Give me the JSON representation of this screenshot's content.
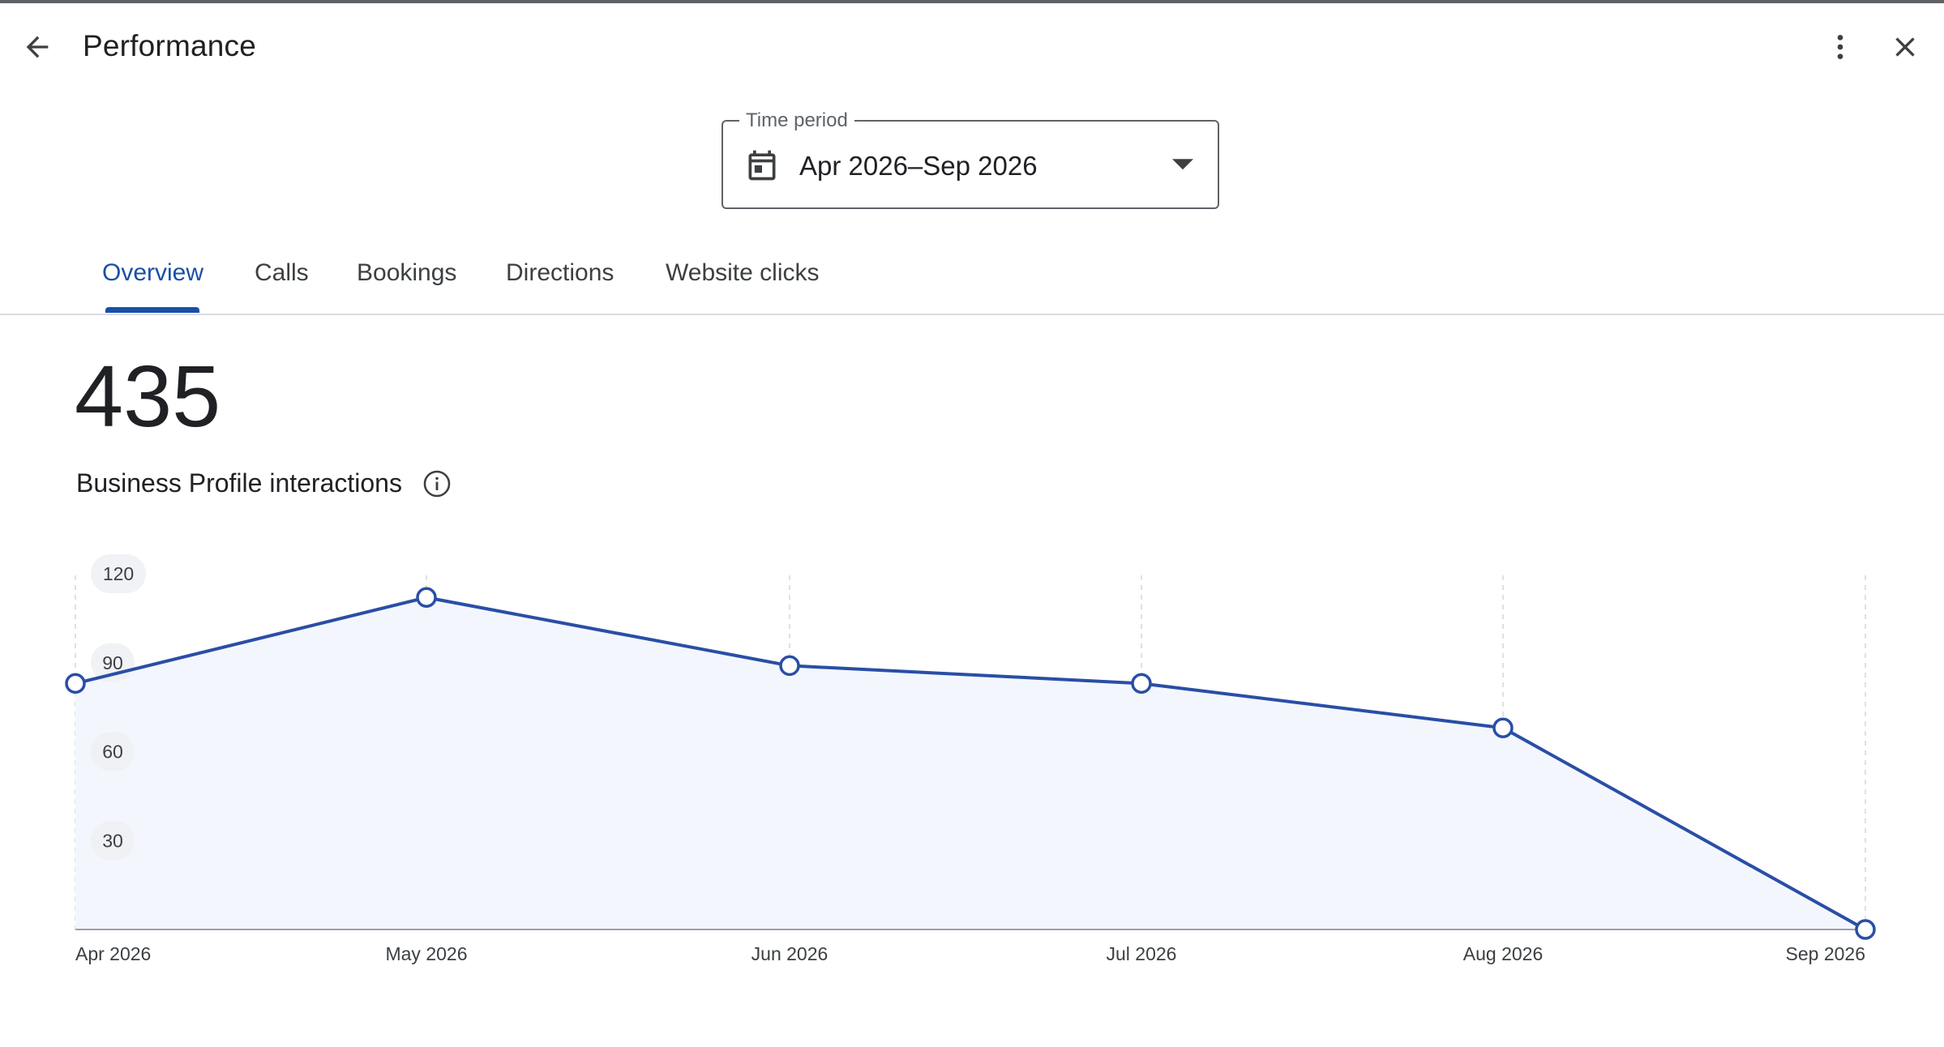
{
  "header": {
    "title": "Performance",
    "back_icon": "arrow-back-icon",
    "more_icon": "more-vert-icon",
    "close_icon": "close-icon"
  },
  "time_period": {
    "label": "Time period",
    "value": "Apr 2026–Sep 2026",
    "icon": "calendar-icon",
    "dropdown_icon": "arrow-drop-down-icon"
  },
  "tabs": [
    {
      "label": "Overview",
      "active": true
    },
    {
      "label": "Calls",
      "active": false
    },
    {
      "label": "Bookings",
      "active": false
    },
    {
      "label": "Directions",
      "active": false
    },
    {
      "label": "Website clicks",
      "active": false
    }
  ],
  "summary": {
    "value": "435",
    "label": "Business Profile interactions",
    "info_icon": "info-icon"
  },
  "colors": {
    "accent": "#1a4fa6",
    "line": "#2a4ea6",
    "area_fill": "#f3f7fd",
    "text": "#202124"
  },
  "chart_data": {
    "type": "line",
    "categories": [
      "Apr 2026",
      "May 2026",
      "Jun 2026",
      "Jul 2026",
      "Aug 2026",
      "Sep 2026"
    ],
    "series": [
      {
        "values": [
          83,
          112,
          89,
          83,
          68,
          0
        ]
      }
    ],
    "y_ticks": [
      30,
      60,
      90,
      120
    ],
    "ylim": [
      0,
      120
    ],
    "area_filled": true,
    "vertical_grid": true
  }
}
